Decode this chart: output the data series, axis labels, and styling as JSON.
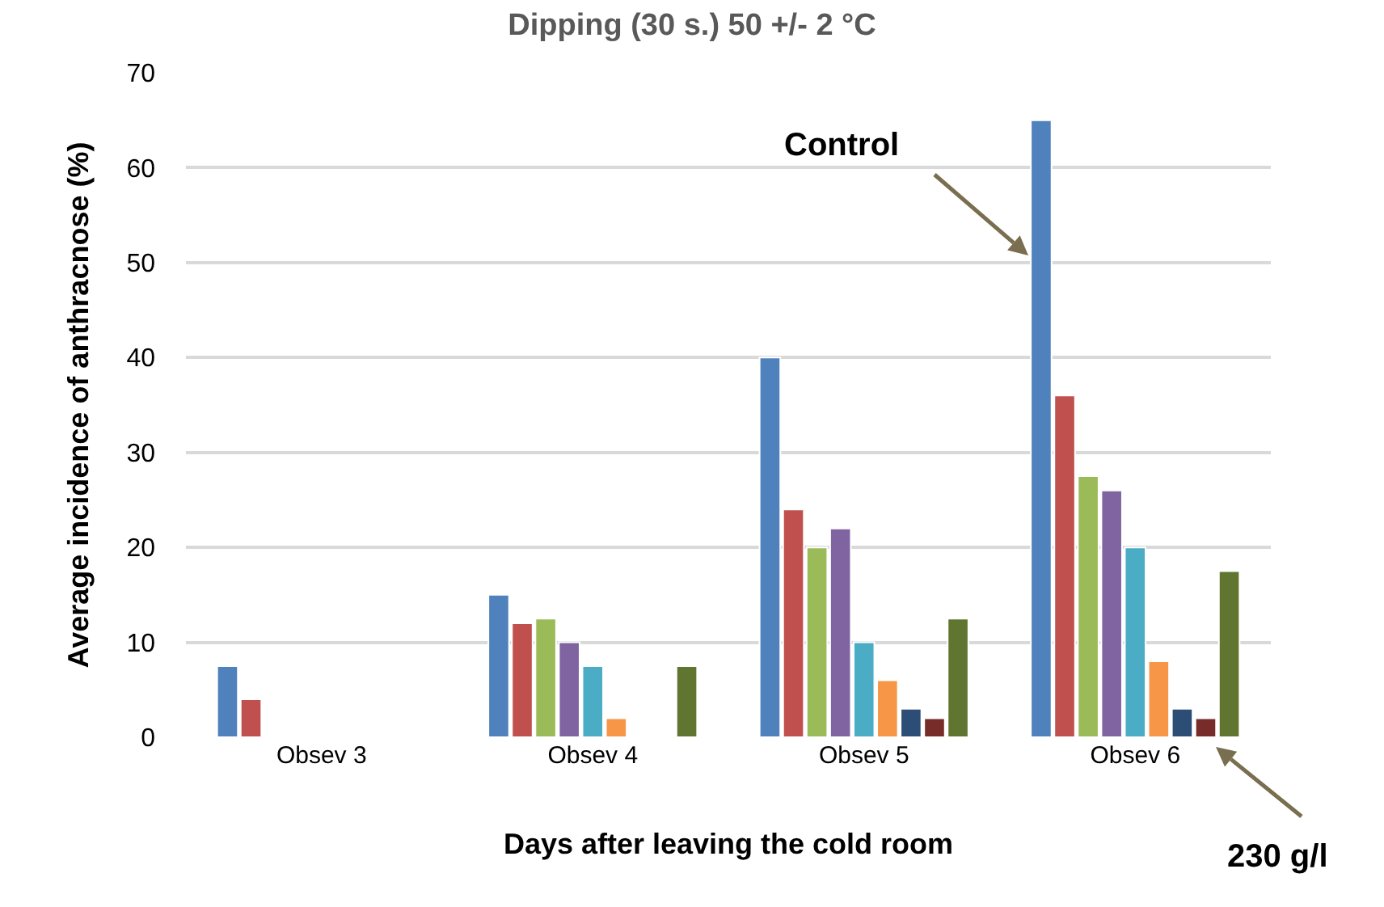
{
  "chart_data": {
    "type": "bar",
    "title": "Dipping (30 s.) 50 +/- 2 °C",
    "xlabel": "Days after leaving the cold room",
    "ylabel": "Average incidence of anthracnose (%)",
    "categories": [
      "Obsev 3",
      "Obsev 4",
      "Obsev 5",
      "Obsev 6"
    ],
    "series": [
      {
        "color": "#4f81bd",
        "values": [
          7.5,
          15,
          40,
          65
        ]
      },
      {
        "color": "#c0504d",
        "values": [
          4,
          12,
          24,
          36
        ]
      },
      {
        "color": "#9bbb59",
        "values": [
          null,
          12.5,
          20,
          27.5
        ]
      },
      {
        "color": "#8064a2",
        "values": [
          null,
          10,
          22,
          26
        ]
      },
      {
        "color": "#4bacc6",
        "values": [
          null,
          7.5,
          10,
          20
        ]
      },
      {
        "color": "#f79646",
        "values": [
          null,
          2,
          6,
          8
        ]
      },
      {
        "color": "#2c4d75",
        "values": [
          null,
          null,
          3,
          3
        ]
      },
      {
        "color": "#772c2a",
        "values": [
          null,
          null,
          2,
          2
        ]
      },
      {
        "color": "#5f7530",
        "values": [
          null,
          7.5,
          12.5,
          17.5
        ]
      }
    ],
    "annotations": [
      "Control",
      "230 g/l"
    ],
    "ylim": [
      0,
      70
    ],
    "yticks": [
      0,
      10,
      20,
      30,
      40,
      50,
      60,
      70
    ],
    "grid": "y"
  }
}
